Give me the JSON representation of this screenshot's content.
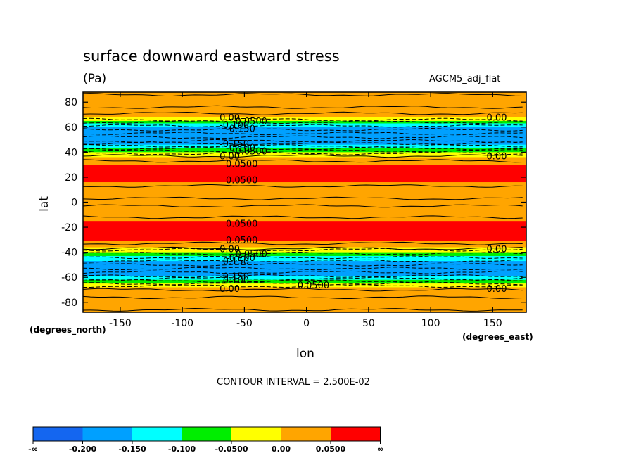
{
  "header": {
    "title": "surface downward eastward stress",
    "units": "(Pa)",
    "dataset": "AGCM5_adj_flat"
  },
  "axes": {
    "x_label": "lon",
    "y_label": "lat",
    "x_unit": "(degrees_east)",
    "y_unit": "(degrees_north)"
  },
  "contour_note": "CONTOUR INTERVAL = 2.500E-02",
  "colors": {
    "band_lt_m02": "#1466f0",
    "band_m02_m015": "#00a0ff",
    "band_m015_m01": "#00ffff",
    "band_m01_m005": "#00ee00",
    "band_m005_0": "#ffff00",
    "band_0_005": "#ffa500",
    "band_gt_005": "#ff0000"
  },
  "chart_data": {
    "type": "heatmap",
    "subtype": "filled contour (zonal bands)",
    "title": "surface downward eastward stress",
    "units": "(Pa)",
    "xlabel": "lon",
    "ylabel": "lat",
    "xlim": [
      -180,
      177
    ],
    "ylim": [
      -88,
      88
    ],
    "x_ticks": [
      -150,
      -100,
      -50,
      0,
      50,
      100,
      150
    ],
    "y_ticks": [
      -80,
      -60,
      -40,
      -20,
      0,
      20,
      40,
      60,
      80
    ],
    "contour_interval": 0.025,
    "colorbar": {
      "boundaries": [
        "-∞",
        "-0.200",
        "-0.150",
        "-0.100",
        "-0.0500",
        "0.00",
        "0.0500",
        "∞"
      ],
      "colors": [
        "#1466f0",
        "#00a0ff",
        "#00ffff",
        "#00ee00",
        "#ffff00",
        "#ffa500",
        "#ff0000"
      ]
    },
    "bands": [
      {
        "lat_from": 88,
        "lat_to": 68,
        "range": "0.00 to 0.0500"
      },
      {
        "lat_from": 68,
        "lat_to": 65,
        "range": "-0.0500 to 0.00"
      },
      {
        "lat_from": 65,
        "lat_to": 63,
        "range": "-0.100 to -0.0500"
      },
      {
        "lat_from": 63,
        "lat_to": 60,
        "range": "-0.150 to -0.100"
      },
      {
        "lat_from": 60,
        "lat_to": 46,
        "range": "-0.200 to -0.150"
      },
      {
        "lat_from": 46,
        "lat_to": 43,
        "range": "-0.150 to -0.100"
      },
      {
        "lat_from": 43,
        "lat_to": 40,
        "range": "-0.100 to -0.0500"
      },
      {
        "lat_from": 40,
        "lat_to": 36,
        "range": "-0.0500 to 0.00"
      },
      {
        "lat_from": 36,
        "lat_to": 30,
        "range": "0.00 to 0.0500"
      },
      {
        "lat_from": 30,
        "lat_to": 16,
        "range": "0.0500 to ∞"
      },
      {
        "lat_from": 16,
        "lat_to": -15,
        "range": "0.00 to 0.0500"
      },
      {
        "lat_from": -15,
        "lat_to": -31,
        "range": "0.0500 to ∞"
      },
      {
        "lat_from": -31,
        "lat_to": -36,
        "range": "0.00 to 0.0500"
      },
      {
        "lat_from": -36,
        "lat_to": -40,
        "range": "-0.0500 to 0.00"
      },
      {
        "lat_from": -40,
        "lat_to": -43,
        "range": "-0.100 to -0.0500"
      },
      {
        "lat_from": -43,
        "lat_to": -47,
        "range": "-0.150 to -0.100"
      },
      {
        "lat_from": -47,
        "lat_to": -59,
        "range": "-0.200 to -0.150"
      },
      {
        "lat_from": -59,
        "lat_to": -62,
        "range": "-0.150 to -0.100"
      },
      {
        "lat_from": -62,
        "lat_to": -65,
        "range": "-0.100 to -0.0500"
      },
      {
        "lat_from": -65,
        "lat_to": -68,
        "range": "-0.0500 to 0.00"
      },
      {
        "lat_from": -68,
        "lat_to": -88,
        "range": "0.00 to 0.0500"
      }
    ],
    "solid_contours_lat": [
      86,
      76,
      71,
      37,
      33,
      13,
      3,
      -3,
      -12,
      -33,
      -37,
      -70,
      -76,
      -86
    ],
    "dashed_contours_lat": [
      66,
      64,
      61,
      58,
      55,
      52,
      49,
      47,
      45,
      43,
      41,
      39,
      -38,
      -41,
      -44,
      -47,
      -50,
      -53,
      -56,
      -59,
      -61,
      -63,
      -65,
      -67
    ],
    "contour_labels": [
      {
        "lon": -70,
        "lat": 68,
        "text": "0.00"
      },
      {
        "lon": -60,
        "lat": 65,
        "text": "-0.0500"
      },
      {
        "lon": -70,
        "lat": 62,
        "text": "-0.100"
      },
      {
        "lon": -65,
        "lat": 59,
        "text": "-0.150"
      },
      {
        "lon": -70,
        "lat": 47,
        "text": "-0.150"
      },
      {
        "lon": -65,
        "lat": 44,
        "text": "-0.100"
      },
      {
        "lon": -60,
        "lat": 41,
        "text": "-0.0500"
      },
      {
        "lon": -70,
        "lat": 37,
        "text": "0.00"
      },
      {
        "lon": -65,
        "lat": 31,
        "text": "0.0500"
      },
      {
        "lon": -65,
        "lat": 18,
        "text": "0.0500"
      },
      {
        "lon": -65,
        "lat": -17,
        "text": "0.0500"
      },
      {
        "lon": -65,
        "lat": -30,
        "text": "0.0500"
      },
      {
        "lon": -70,
        "lat": -37,
        "text": "0.00"
      },
      {
        "lon": -60,
        "lat": -41,
        "text": "-0.0500"
      },
      {
        "lon": -65,
        "lat": -44,
        "text": "-0.100"
      },
      {
        "lon": -70,
        "lat": -47,
        "text": "-0.150"
      },
      {
        "lon": -70,
        "lat": -59,
        "text": "-0.150"
      },
      {
        "lon": -70,
        "lat": -62,
        "text": "-0.100"
      },
      {
        "lon": -10,
        "lat": -66,
        "text": "-0.0500"
      },
      {
        "lon": -70,
        "lat": -69,
        "text": "0.00"
      },
      {
        "lon": 145,
        "lat": 68,
        "text": "0.00"
      },
      {
        "lon": 145,
        "lat": 37,
        "text": "0.00"
      },
      {
        "lon": 145,
        "lat": -37,
        "text": "0.00"
      },
      {
        "lon": 145,
        "lat": -69,
        "text": "0.00"
      }
    ]
  }
}
